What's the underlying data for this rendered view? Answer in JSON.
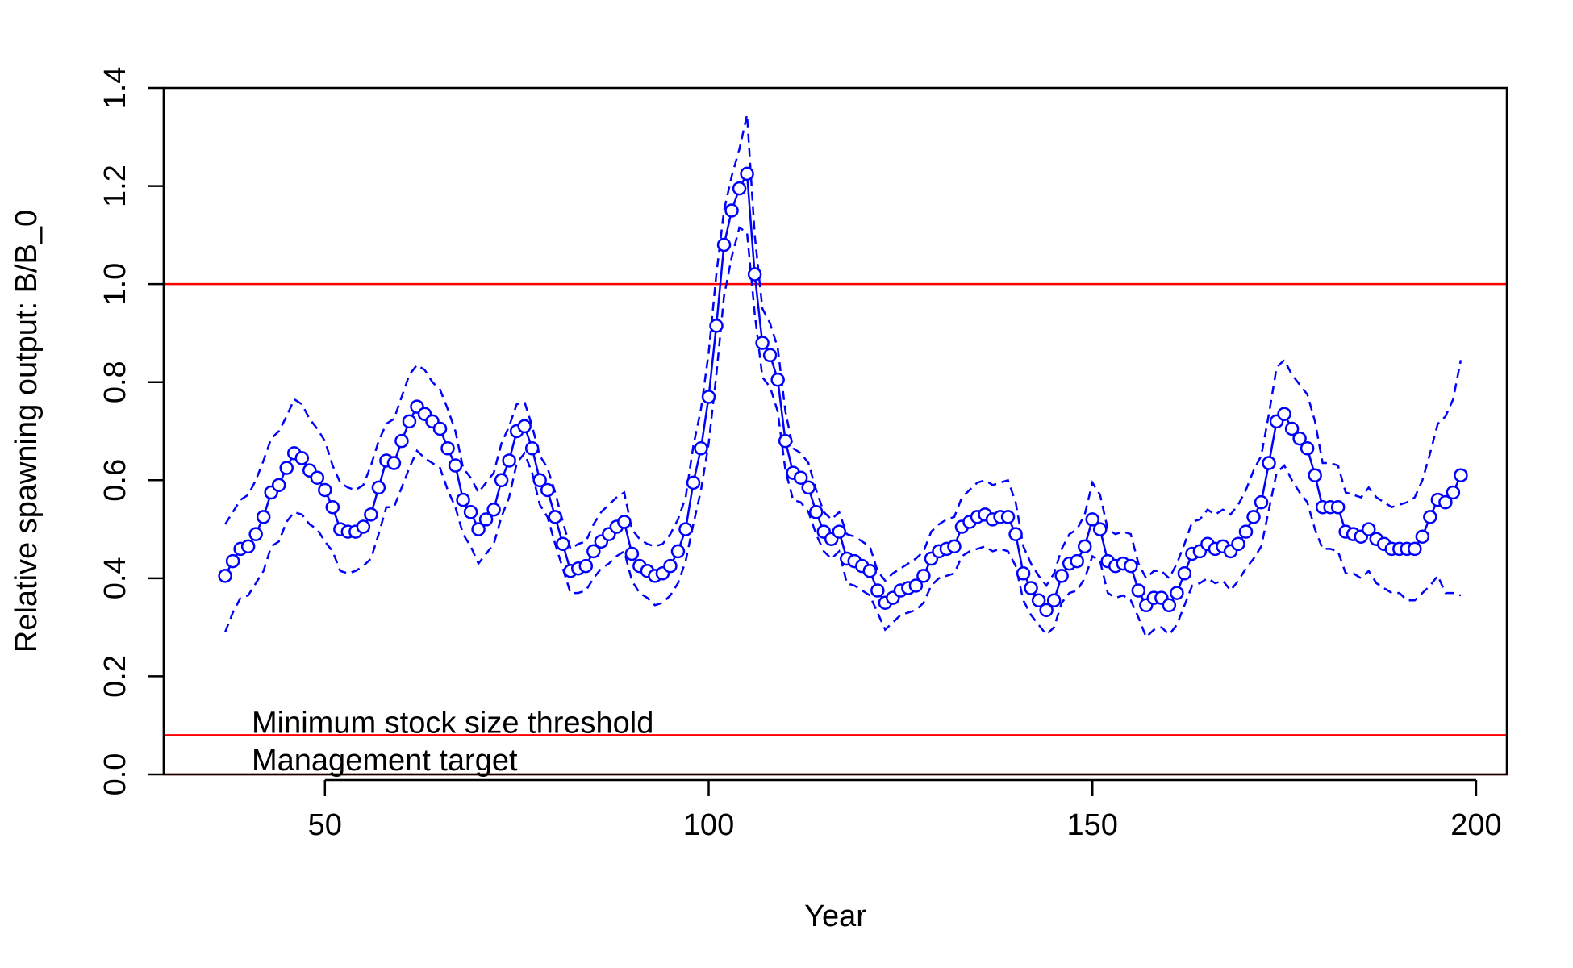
{
  "chart_data": {
    "type": "line",
    "title": "",
    "xlabel": "Year",
    "ylabel": "Relative spawning output: B/B_0",
    "xlim": [
      29,
      204
    ],
    "ylim": [
      0,
      1.4
    ],
    "xticks": [
      50,
      100,
      150,
      200
    ],
    "yticks": [
      0.0,
      0.2,
      0.4,
      0.6,
      0.8,
      1.0,
      1.2,
      1.4
    ],
    "ytick_labels": [
      "0.0",
      "0.2",
      "0.4",
      "0.6",
      "0.8",
      "1.0",
      "1.2",
      "1.4"
    ],
    "xtick_labels": [
      "50",
      "100",
      "150",
      "200"
    ],
    "grid": false,
    "legend": "none",
    "x_start": 37,
    "series": [
      {
        "role": "estimate",
        "style": "line-with-open-circles",
        "color": "#0000ff",
        "values": [
          0.405,
          0.435,
          0.46,
          0.465,
          0.49,
          0.525,
          0.575,
          0.59,
          0.625,
          0.655,
          0.645,
          0.62,
          0.605,
          0.58,
          0.545,
          0.5,
          0.495,
          0.495,
          0.505,
          0.53,
          0.585,
          0.64,
          0.635,
          0.68,
          0.72,
          0.75,
          0.735,
          0.72,
          0.705,
          0.665,
          0.63,
          0.56,
          0.535,
          0.5,
          0.52,
          0.54,
          0.6,
          0.64,
          0.7,
          0.71,
          0.665,
          0.6,
          0.58,
          0.525,
          0.47,
          0.415,
          0.42,
          0.425,
          0.455,
          0.475,
          0.49,
          0.505,
          0.515,
          0.45,
          0.425,
          0.415,
          0.405,
          0.41,
          0.425,
          0.455,
          0.5,
          0.595,
          0.665,
          0.77,
          0.915,
          1.08,
          1.15,
          1.195,
          1.225,
          1.02,
          0.88,
          0.855,
          0.805,
          0.68,
          0.615,
          0.605,
          0.585,
          0.535,
          0.495,
          0.48,
          0.495,
          0.44,
          0.435,
          0.425,
          0.415,
          0.375,
          0.35,
          0.36,
          0.375,
          0.38,
          0.385,
          0.405,
          0.44,
          0.455,
          0.46,
          0.465,
          0.505,
          0.515,
          0.525,
          0.53,
          0.52,
          0.525,
          0.525,
          0.49,
          0.41,
          0.38,
          0.355,
          0.335,
          0.355,
          0.405,
          0.43,
          0.435,
          0.465,
          0.52,
          0.5,
          0.435,
          0.425,
          0.43,
          0.425,
          0.375,
          0.345,
          0.36,
          0.36,
          0.345,
          0.37,
          0.41,
          0.45,
          0.455,
          0.47,
          0.46,
          0.465,
          0.455,
          0.47,
          0.495,
          0.525,
          0.555,
          0.635,
          0.72,
          0.735,
          0.705,
          0.685,
          0.665,
          0.61,
          0.545,
          0.545,
          0.545,
          0.495,
          0.49,
          0.485,
          0.5,
          0.48,
          0.47,
          0.46,
          0.46,
          0.46,
          0.46,
          0.485,
          0.525,
          0.56,
          0.555,
          0.575,
          0.61
        ]
      },
      {
        "role": "upper-interval",
        "style": "dashed",
        "color": "#0000ff",
        "values": [
          0.51,
          0.535,
          0.56,
          0.57,
          0.6,
          0.64,
          0.685,
          0.7,
          0.73,
          0.765,
          0.755,
          0.725,
          0.705,
          0.68,
          0.63,
          0.595,
          0.585,
          0.58,
          0.59,
          0.63,
          0.68,
          0.715,
          0.725,
          0.77,
          0.815,
          0.835,
          0.825,
          0.8,
          0.785,
          0.745,
          0.7,
          0.625,
          0.605,
          0.575,
          0.595,
          0.615,
          0.675,
          0.71,
          0.755,
          0.76,
          0.71,
          0.65,
          0.625,
          0.575,
          0.515,
          0.46,
          0.47,
          0.475,
          0.51,
          0.535,
          0.55,
          0.565,
          0.575,
          0.5,
          0.48,
          0.47,
          0.465,
          0.47,
          0.49,
          0.52,
          0.565,
          0.67,
          0.745,
          0.86,
          1.02,
          1.15,
          1.22,
          1.275,
          1.345,
          1.1,
          0.95,
          0.92,
          0.87,
          0.74,
          0.665,
          0.655,
          0.635,
          0.58,
          0.535,
          0.52,
          0.535,
          0.49,
          0.485,
          0.475,
          0.465,
          0.415,
          0.395,
          0.41,
          0.42,
          0.43,
          0.44,
          0.455,
          0.495,
          0.51,
          0.52,
          0.525,
          0.565,
          0.58,
          0.595,
          0.6,
          0.59,
          0.595,
          0.6,
          0.555,
          0.465,
          0.43,
          0.405,
          0.385,
          0.41,
          0.46,
          0.49,
          0.5,
          0.53,
          0.595,
          0.57,
          0.5,
          0.49,
          0.495,
          0.49,
          0.43,
          0.4,
          0.415,
          0.415,
          0.4,
          0.43,
          0.47,
          0.515,
          0.52,
          0.54,
          0.53,
          0.54,
          0.53,
          0.55,
          0.58,
          0.62,
          0.65,
          0.735,
          0.83,
          0.845,
          0.815,
          0.795,
          0.775,
          0.72,
          0.635,
          0.635,
          0.63,
          0.575,
          0.57,
          0.565,
          0.585,
          0.565,
          0.555,
          0.545,
          0.55,
          0.555,
          0.565,
          0.6,
          0.655,
          0.715,
          0.73,
          0.765,
          0.845
        ]
      },
      {
        "role": "lower-interval",
        "style": "dashed",
        "color": "#0000ff",
        "values": [
          0.29,
          0.33,
          0.36,
          0.365,
          0.39,
          0.415,
          0.465,
          0.475,
          0.515,
          0.535,
          0.53,
          0.51,
          0.5,
          0.475,
          0.455,
          0.415,
          0.41,
          0.415,
          0.425,
          0.44,
          0.49,
          0.545,
          0.545,
          0.585,
          0.625,
          0.66,
          0.645,
          0.635,
          0.625,
          0.58,
          0.545,
          0.49,
          0.465,
          0.43,
          0.45,
          0.47,
          0.525,
          0.565,
          0.635,
          0.655,
          0.615,
          0.55,
          0.525,
          0.47,
          0.42,
          0.37,
          0.37,
          0.375,
          0.4,
          0.42,
          0.43,
          0.445,
          0.455,
          0.395,
          0.37,
          0.36,
          0.345,
          0.35,
          0.365,
          0.39,
          0.435,
          0.51,
          0.58,
          0.675,
          0.815,
          0.975,
          1.055,
          1.115,
          1.105,
          0.94,
          0.81,
          0.79,
          0.74,
          0.62,
          0.56,
          0.555,
          0.535,
          0.49,
          0.455,
          0.44,
          0.455,
          0.39,
          0.385,
          0.375,
          0.365,
          0.33,
          0.295,
          0.31,
          0.325,
          0.33,
          0.335,
          0.35,
          0.385,
          0.4,
          0.405,
          0.41,
          0.445,
          0.455,
          0.46,
          0.465,
          0.455,
          0.46,
          0.455,
          0.425,
          0.355,
          0.325,
          0.305,
          0.285,
          0.3,
          0.35,
          0.37,
          0.375,
          0.4,
          0.445,
          0.435,
          0.37,
          0.36,
          0.365,
          0.355,
          0.32,
          0.28,
          0.295,
          0.3,
          0.285,
          0.305,
          0.345,
          0.385,
          0.39,
          0.4,
          0.39,
          0.395,
          0.375,
          0.395,
          0.42,
          0.44,
          0.465,
          0.54,
          0.615,
          0.63,
          0.6,
          0.575,
          0.555,
          0.5,
          0.46,
          0.46,
          0.455,
          0.41,
          0.41,
          0.4,
          0.415,
          0.39,
          0.38,
          0.37,
          0.37,
          0.355,
          0.355,
          0.37,
          0.385,
          0.405,
          0.37,
          0.37,
          0.365
        ]
      }
    ],
    "reference_lines": [
      {
        "y": 1.0,
        "color": "#ff0000"
      },
      {
        "y": 0.08,
        "color": "#ff0000",
        "label": "Minimum stock size threshold"
      },
      {
        "y": 0.0,
        "color": "#ff0000",
        "label": "Management target"
      }
    ]
  }
}
